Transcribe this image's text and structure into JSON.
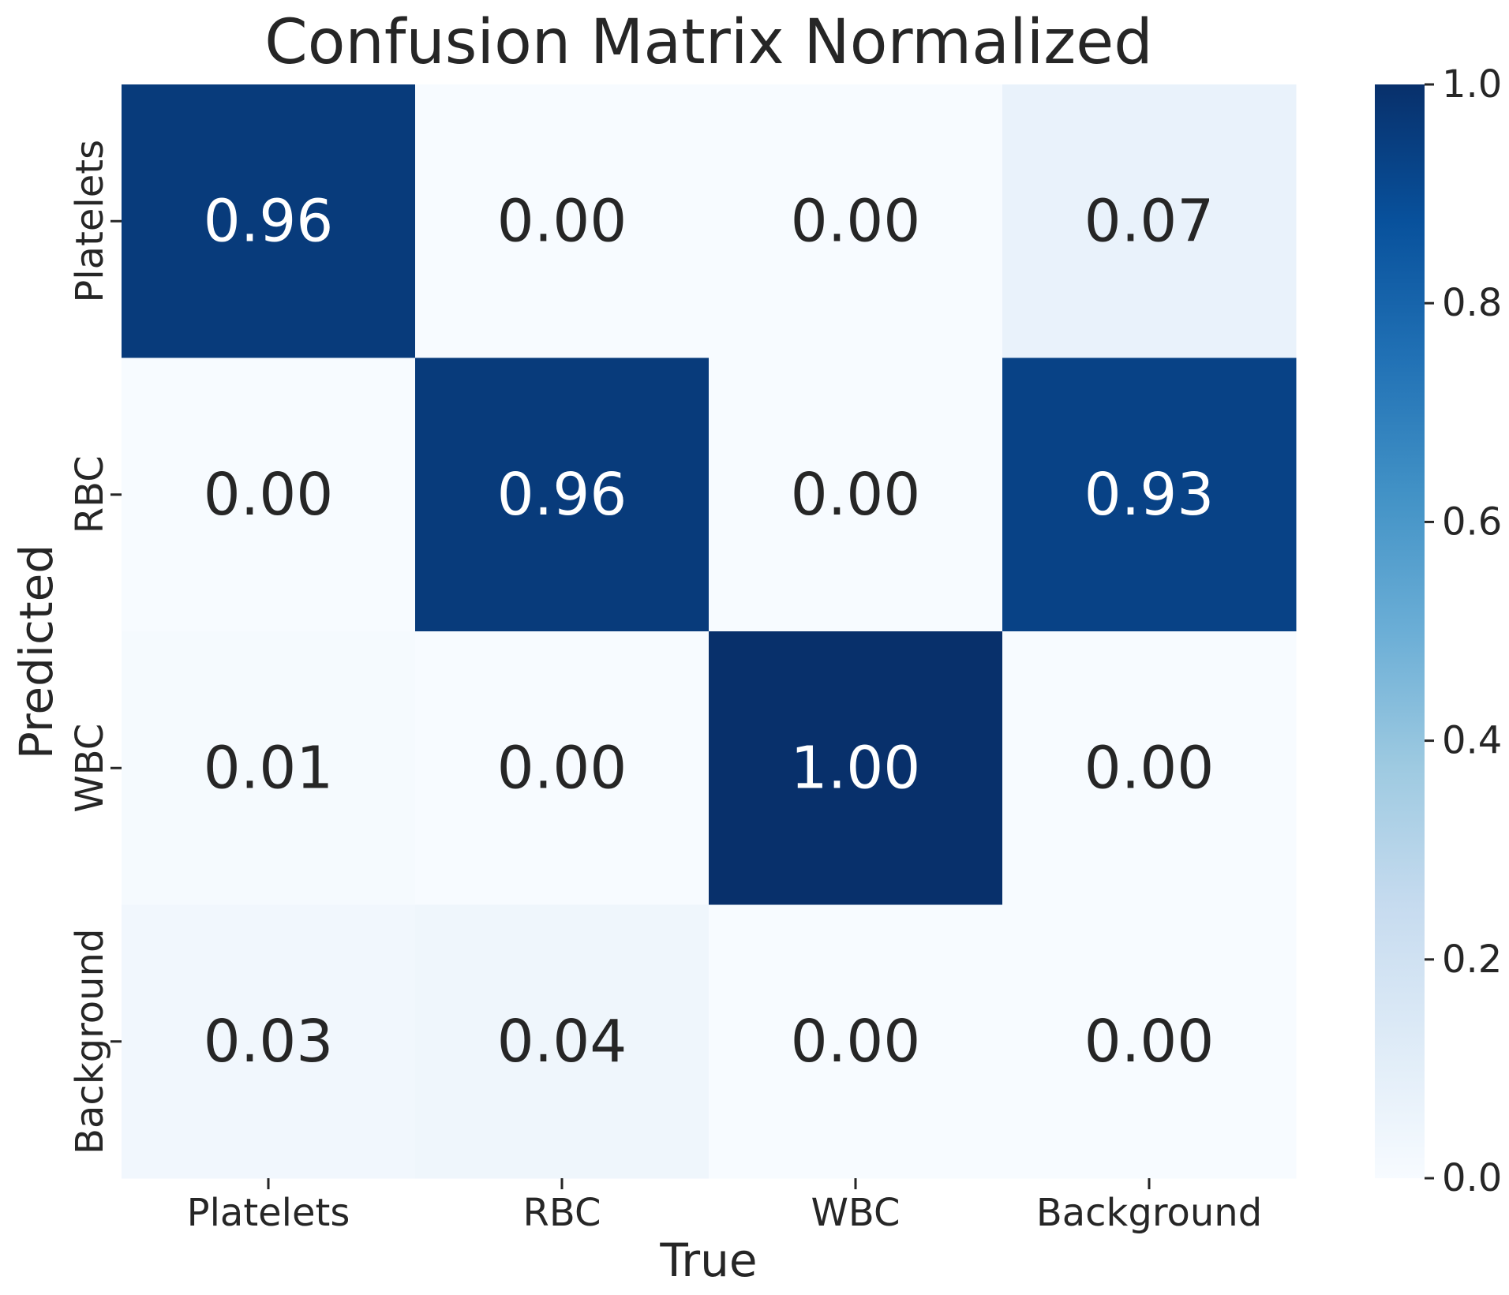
{
  "chart_data": {
    "type": "heatmap",
    "title": "Confusion Matrix Normalized",
    "xlabel": "True",
    "ylabel": "Predicted",
    "x_categories": [
      "Platelets",
      "RBC",
      "WBC",
      "Background"
    ],
    "y_categories": [
      "Platelets",
      "RBC",
      "WBC",
      "Background"
    ],
    "values": [
      [
        0.96,
        0.0,
        0.0,
        0.07
      ],
      [
        0.0,
        0.96,
        0.0,
        0.93
      ],
      [
        0.01,
        0.0,
        1.0,
        0.0
      ],
      [
        0.03,
        0.04,
        0.0,
        0.0
      ]
    ],
    "value_labels": [
      [
        "0.96",
        "0.00",
        "0.00",
        "0.07"
      ],
      [
        "0.00",
        "0.96",
        "0.00",
        "0.93"
      ],
      [
        "0.01",
        "0.00",
        "1.00",
        "0.00"
      ],
      [
        "0.03",
        "0.04",
        "0.00",
        "0.00"
      ]
    ],
    "colorbar": {
      "range": [
        0.0,
        1.0
      ],
      "ticks": [
        0.0,
        0.2,
        0.4,
        0.6,
        0.8,
        1.0
      ],
      "tick_labels": [
        "0.0",
        "0.2",
        "0.4",
        "0.6",
        "0.8",
        "1.0"
      ],
      "colormap": "Blues",
      "colormap_stops": [
        "#f7fbff",
        "#deebf7",
        "#c6dbef",
        "#9ecae1",
        "#6baed6",
        "#4292c6",
        "#2171b5",
        "#08519c",
        "#08306b"
      ]
    },
    "grid": false,
    "annotation_text_colors": {
      "dark_cell": "#ffffff",
      "light_cell": "#262626"
    }
  }
}
